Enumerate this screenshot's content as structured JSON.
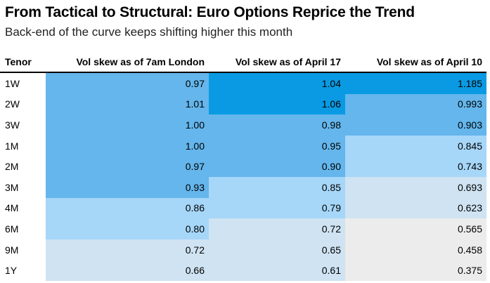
{
  "title": "From Tactical to Structural: Euro Options Reprice the Trend",
  "subtitle": "Back-end of the curve keeps shifting higher this month",
  "chart_data": {
    "type": "table",
    "columns": [
      "Tenor",
      "Vol skew as of 7am London",
      "Vol skew as of April 17",
      "Vol skew as of April 10"
    ],
    "rows": [
      {
        "tenor": "1W",
        "v1": "0.97",
        "v2": "1.04",
        "v3": "1.185"
      },
      {
        "tenor": "2W",
        "v1": "1.01",
        "v2": "1.06",
        "v3": "0.993"
      },
      {
        "tenor": "3W",
        "v1": "1.00",
        "v2": "0.98",
        "v3": "0.903"
      },
      {
        "tenor": "1M",
        "v1": "1.00",
        "v2": "0.95",
        "v3": "0.845"
      },
      {
        "tenor": "2M",
        "v1": "0.97",
        "v2": "0.90",
        "v3": "0.743"
      },
      {
        "tenor": "3M",
        "v1": "0.93",
        "v2": "0.85",
        "v3": "0.693"
      },
      {
        "tenor": "4M",
        "v1": "0.86",
        "v2": "0.79",
        "v3": "0.623"
      },
      {
        "tenor": "6M",
        "v1": "0.80",
        "v2": "0.72",
        "v3": "0.565"
      },
      {
        "tenor": "9M",
        "v1": "0.72",
        "v2": "0.65",
        "v3": "0.458"
      },
      {
        "tenor": "1Y",
        "v1": "0.66",
        "v2": "0.61",
        "v3": "0.375"
      }
    ],
    "color_scale": {
      "type": "heatmap",
      "bins": [
        {
          "min": 1.02,
          "color": "#0a9ae3"
        },
        {
          "min": 0.87,
          "color": "#64b6ec"
        },
        {
          "min": 0.73,
          "color": "#a6d6f8"
        },
        {
          "min": 0.6,
          "color": "#cfe3f2"
        },
        {
          "min": 0.0,
          "color": "#ececec"
        }
      ]
    }
  }
}
